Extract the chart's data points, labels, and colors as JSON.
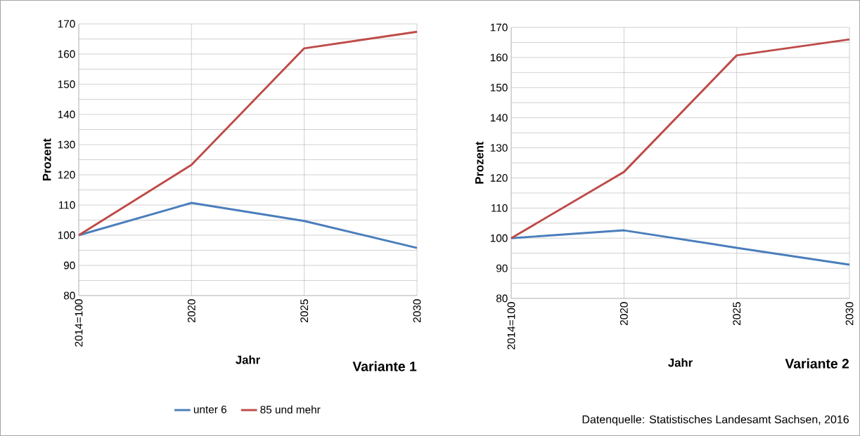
{
  "chart_data": [
    {
      "type": "line",
      "xlabel": "Jahr",
      "ylabel": "Prozent",
      "categories": [
        "2014=100",
        "2020",
        "2025",
        "2030"
      ],
      "ylim": [
        80,
        170
      ],
      "yticks": [
        80,
        {
          "value": 85,
          "label": null
        },
        90,
        {
          "value": 95,
          "label": null
        },
        100,
        {
          "value": 105,
          "label": null
        },
        110,
        {
          "value": 115,
          "label": null
        },
        120,
        {
          "value": 125,
          "label": null
        },
        130,
        {
          "value": 135,
          "label": null
        },
        140,
        {
          "value": 145,
          "label": null
        },
        150,
        {
          "value": 155,
          "label": null
        },
        160,
        {
          "value": 165,
          "label": null
        },
        170
      ],
      "grid": true,
      "legend": "bottom",
      "annotations": [
        "Variante 1"
      ],
      "series": [
        {
          "name": "unter 6",
          "color": "#4a7ebb",
          "values": [
            100,
            110.7,
            104.7,
            95.8
          ]
        },
        {
          "name": "85 und mehr",
          "color": "#be4b48",
          "values": [
            100,
            123.3,
            161.9,
            167.4
          ]
        }
      ]
    },
    {
      "type": "line",
      "xlabel": "Jahr",
      "ylabel": "Prozent",
      "categories": [
        "2014=100",
        "2020",
        "2025",
        "2030"
      ],
      "ylim": [
        80,
        170
      ],
      "yticks": [
        80,
        {
          "value": 85,
          "label": null
        },
        90,
        {
          "value": 95,
          "label": null
        },
        100,
        {
          "value": 105,
          "label": null
        },
        110,
        {
          "value": 115,
          "label": null
        },
        120,
        {
          "value": 125,
          "label": null
        },
        130,
        {
          "value": 135,
          "label": null
        },
        140,
        {
          "value": 145,
          "label": null
        },
        150,
        {
          "value": 155,
          "label": null
        },
        160,
        {
          "value": 165,
          "label": null
        },
        170
      ],
      "grid": true,
      "annotations": [
        "Variante 2",
        "Datenquelle: Statistisches Landesamt Sachsen, 2016"
      ],
      "series": [
        {
          "color": "#4a7ebb",
          "values": [
            100,
            102.6,
            96.8,
            91.2
          ]
        },
        {
          "color": "#be4b48",
          "values": [
            100,
            122,
            160.7,
            166
          ]
        }
      ]
    }
  ]
}
